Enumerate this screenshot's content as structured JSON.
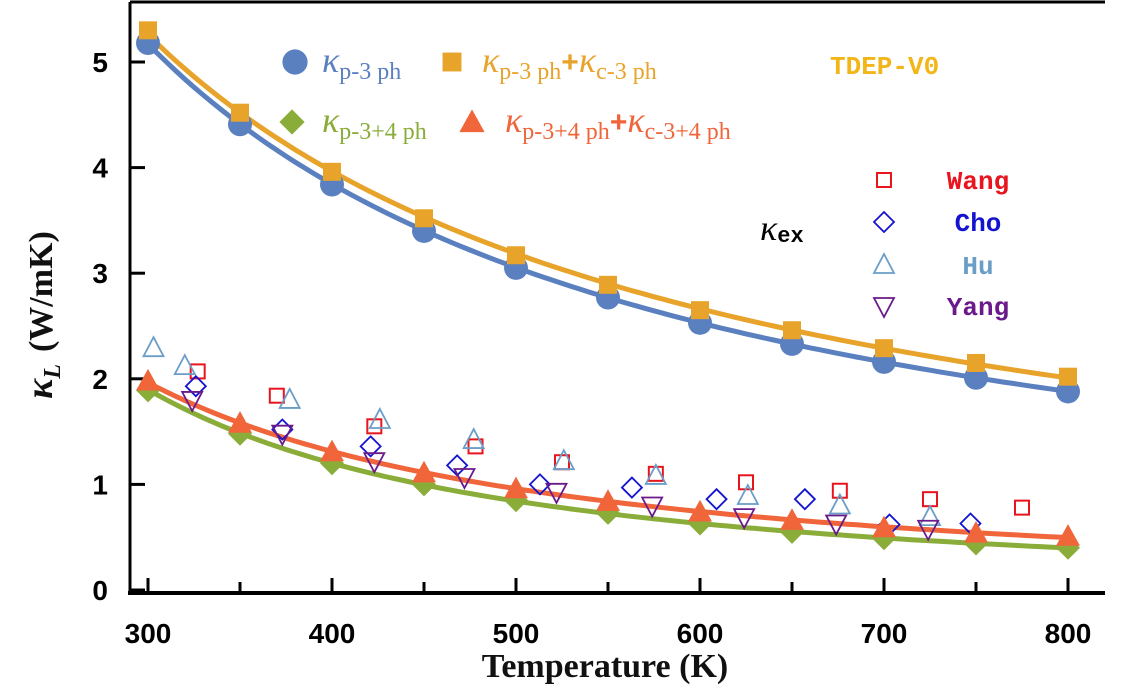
{
  "chart_data": {
    "type": "scatter",
    "title": "TDEP-V0",
    "xlabel": "Temperature (K)",
    "ylabel": {
      "symbol": "κ",
      "sub": "L",
      "unit": "(W/mK)"
    },
    "xlim": [
      290,
      820
    ],
    "ylim": [
      0,
      5.4
    ],
    "xticks": [
      300,
      400,
      500,
      600,
      700,
      800
    ],
    "yticks": [
      0,
      1,
      2,
      3,
      4,
      5
    ],
    "grid": false,
    "legend_placement": "top",
    "series": [
      {
        "name": [
          {
            "t": "κ"
          },
          {
            "t": "p-3 ph",
            "sub": true
          }
        ],
        "marker": "circle",
        "color": "#5b80c0",
        "fit_line": true,
        "x": [
          300,
          350,
          400,
          450,
          500,
          550,
          600,
          650,
          700,
          750,
          800
        ],
        "y": [
          5.18,
          4.41,
          3.84,
          3.4,
          3.05,
          2.77,
          2.53,
          2.33,
          2.16,
          2.01,
          1.88
        ]
      },
      {
        "name": [
          {
            "t": "κ"
          },
          {
            "t": "p-3 ph",
            "sub": true
          },
          {
            "t": "+"
          },
          {
            "t": "κ"
          },
          {
            "t": "c-3 ph",
            "sub": true
          }
        ],
        "marker": "square",
        "color": "#e8a32a",
        "fit_line": true,
        "x": [
          300,
          350,
          400,
          450,
          500,
          550,
          600,
          650,
          700,
          750,
          800
        ],
        "y": [
          5.3,
          4.52,
          3.96,
          3.52,
          3.17,
          2.89,
          2.65,
          2.46,
          2.29,
          2.15,
          2.02
        ]
      },
      {
        "name": [
          {
            "t": "κ"
          },
          {
            "t": "p-3+4 ph",
            "sub": true
          }
        ],
        "marker": "diamond",
        "color": "#8aad3a",
        "fit_line": true,
        "x": [
          300,
          350,
          400,
          450,
          500,
          550,
          600,
          650,
          700,
          750,
          800
        ],
        "y": [
          1.89,
          1.48,
          1.2,
          1.0,
          0.85,
          0.73,
          0.63,
          0.55,
          0.49,
          0.44,
          0.4
        ]
      },
      {
        "name": [
          {
            "t": "κ"
          },
          {
            "t": "p-3+4 ph",
            "sub": true
          },
          {
            "t": "+"
          },
          {
            "t": "κ"
          },
          {
            "t": "c-3+4 ph",
            "sub": true
          }
        ],
        "marker": "triangle",
        "color": "#f0653a",
        "fit_line": true,
        "x": [
          300,
          350,
          400,
          450,
          500,
          550,
          600,
          650,
          700,
          750,
          800
        ],
        "y": [
          1.98,
          1.58,
          1.31,
          1.11,
          0.96,
          0.84,
          0.74,
          0.66,
          0.59,
          0.54,
          0.51
        ]
      },
      {
        "name": "Wang",
        "marker": "open-square",
        "color": "#e8141e",
        "fit_line": false,
        "x": [
          327,
          370,
          423,
          478,
          525,
          576,
          625,
          676,
          725,
          775
        ],
        "y": [
          2.07,
          1.84,
          1.55,
          1.36,
          1.21,
          1.1,
          1.02,
          0.94,
          0.86,
          0.78
        ]
      },
      {
        "name": "Cho",
        "marker": "open-diamond",
        "color": "#1414d0",
        "fit_line": false,
        "x": [
          326,
          373,
          421,
          468,
          513,
          563,
          609,
          657,
          703,
          747
        ],
        "y": [
          1.93,
          1.52,
          1.36,
          1.18,
          1.0,
          0.97,
          0.86,
          0.86,
          0.62,
          0.63
        ]
      },
      {
        "name": "Hu",
        "marker": "open-triangle",
        "color": "#6a9ec8",
        "fit_line": false,
        "x": [
          303,
          320,
          377,
          426,
          477,
          526,
          576,
          626,
          676,
          725
        ],
        "y": [
          2.29,
          2.12,
          1.8,
          1.61,
          1.42,
          1.22,
          1.08,
          0.89,
          0.8,
          0.69
        ]
      },
      {
        "name": "Yang",
        "marker": "open-down-triangle",
        "color": "#6a1a8a",
        "fit_line": false,
        "x": [
          324,
          373,
          423,
          472,
          522,
          574,
          624,
          674,
          724
        ],
        "y": [
          1.8,
          1.48,
          1.22,
          1.07,
          0.93,
          0.8,
          0.69,
          0.63,
          0.58
        ]
      }
    ],
    "exp_group_label": {
      "symbol": "κ",
      "sub": "ex"
    }
  }
}
